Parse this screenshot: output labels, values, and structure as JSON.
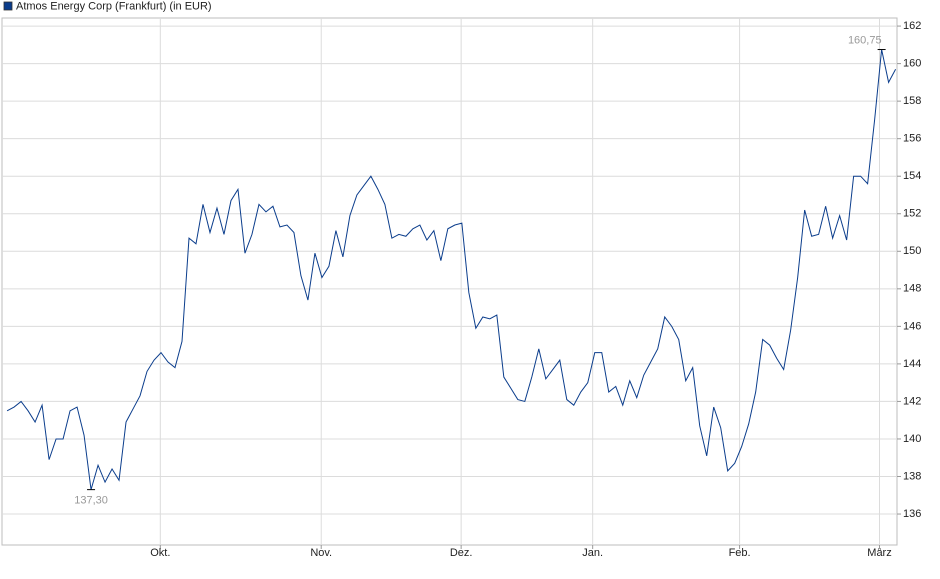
{
  "chart_data": {
    "type": "line",
    "series": [
      {
        "name": "Atmos Energy Corp (Frankfurt) (in EUR)",
        "color": "#0b3d8c",
        "values": [
          141.5,
          141.7,
          142.0,
          141.5,
          140.9,
          141.8,
          138.9,
          140.0,
          140.0,
          141.5,
          141.7,
          140.2,
          137.3,
          138.6,
          137.7,
          138.4,
          137.8,
          140.9,
          141.6,
          142.3,
          143.6,
          144.2,
          144.6,
          144.1,
          143.8,
          145.2,
          150.7,
          150.4,
          152.5,
          151.0,
          152.3,
          150.9,
          152.7,
          153.3,
          149.9,
          150.9,
          152.5,
          152.1,
          152.4,
          151.3,
          151.4,
          151.0,
          148.7,
          147.4,
          149.9,
          148.6,
          149.2,
          151.1,
          149.7,
          151.9,
          153.0,
          153.5,
          154.0,
          153.3,
          152.5,
          150.7,
          150.9,
          150.8,
          151.2,
          151.4,
          150.6,
          151.1,
          149.5,
          151.2,
          151.4,
          151.5,
          147.8,
          145.9,
          146.5,
          146.4,
          146.6,
          143.3,
          142.7,
          142.1,
          142.0,
          143.3,
          144.8,
          143.2,
          143.7,
          144.2,
          142.1,
          141.8,
          142.5,
          143.0,
          144.6,
          144.6,
          142.5,
          142.8,
          141.8,
          143.1,
          142.2,
          143.4,
          144.1,
          144.8,
          146.5,
          146.0,
          145.3,
          143.1,
          143.8,
          140.7,
          139.1,
          141.7,
          140.6,
          138.3,
          138.7,
          139.6,
          140.8,
          142.5,
          145.3,
          145.0,
          144.3,
          143.7,
          145.8,
          148.6,
          152.2,
          150.8,
          150.9,
          152.4,
          150.7,
          151.9,
          150.6,
          154.0,
          154.0,
          153.6,
          157.0,
          160.75,
          159.0,
          159.7
        ]
      }
    ],
    "xlim": [
      -0.3,
      127.2
    ],
    "xticks": [
      {
        "value": 21.9,
        "label": "Okt."
      },
      {
        "value": 44.9,
        "label": "Nov."
      },
      {
        "value": 64.9,
        "label": "Dez."
      },
      {
        "value": 83.7,
        "label": "Jan."
      },
      {
        "value": 104.7,
        "label": "Feb."
      },
      {
        "value": 124.7,
        "label": "März"
      }
    ],
    "ylim": [
      134.35,
      162.43
    ],
    "yticks": [
      136,
      138,
      140,
      142,
      144,
      146,
      148,
      150,
      152,
      154,
      156,
      158,
      160,
      162
    ],
    "annotations": [
      {
        "index": 12,
        "value": 137.3,
        "label": "137,30"
      },
      {
        "index": 125,
        "value": 160.75,
        "label": "160,75"
      }
    ],
    "grid": true
  }
}
